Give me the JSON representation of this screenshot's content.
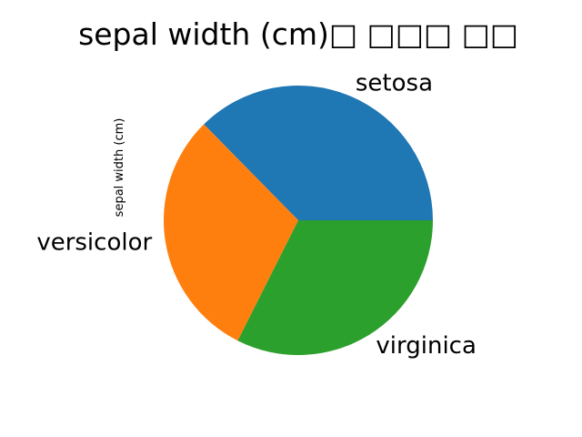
{
  "chart_data": {
    "type": "pie",
    "title": "sepal width (cm)□ □□□ □□",
    "ylabel": "sepal width (cm)",
    "categories": [
      "setosa",
      "versicolor",
      "virginica"
    ],
    "values": [
      171.4,
      138.5,
      148.7
    ],
    "colors": [
      "#1f77b4",
      "#ff7f0e",
      "#2ca02c"
    ],
    "start_angle_deg": 0,
    "direction": "counterclockwise",
    "legend": "none"
  }
}
